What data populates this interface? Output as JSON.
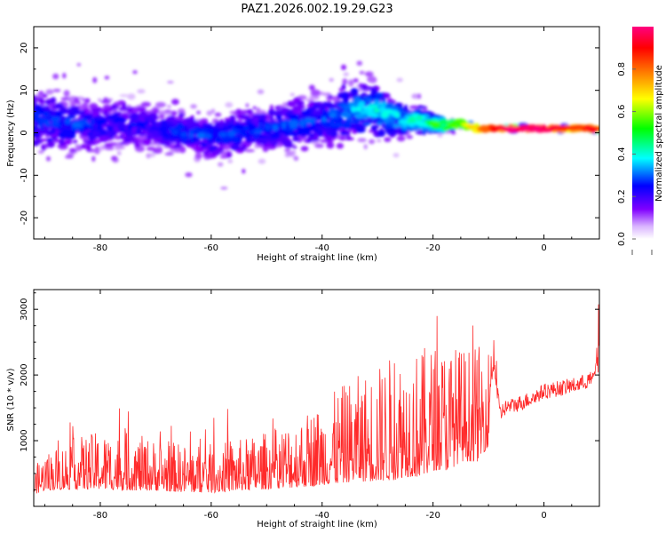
{
  "figure": {
    "title": "PAZ1.2026.002.19.29.G23",
    "colors": {
      "snr_line": "#ff2a2a",
      "axis": "#000000",
      "background": "#ffffff"
    }
  },
  "colorbar": {
    "label": "Normalized spectral amplitude",
    "range": [
      0,
      1
    ],
    "ticks": [
      "0.0",
      "0.2",
      "0.4",
      "0.6",
      "0.8"
    ],
    "tick_values": [
      0.0,
      0.2,
      0.4,
      0.6,
      0.8
    ],
    "colormap": [
      "#ffffff",
      "#8000ff",
      "#0000ff",
      "#00ffff",
      "#00ff00",
      "#ffff00",
      "#ff8000",
      "#ff0000",
      "#ff0080"
    ]
  },
  "chart_data": [
    {
      "type": "heatmap",
      "title": "PAZ1.2026.002.19.29.G23",
      "xlabel": "Height of straight line (km)",
      "ylabel": "Frequency (Hz)",
      "xlim": [
        -92,
        10
      ],
      "ylim": [
        -25,
        25
      ],
      "xticks": [
        -80,
        -60,
        -40,
        -20,
        0
      ],
      "yticks": [
        -20,
        -10,
        0,
        10,
        20
      ],
      "xtick_labels": [
        "-80",
        "-60",
        "-40",
        "-20",
        "0"
      ],
      "ytick_labels": [
        "-20",
        "-10",
        "0",
        "10",
        "20"
      ],
      "ridge": {
        "x": [
          -92,
          -85,
          -80,
          -75,
          -70,
          -65,
          -60,
          -55,
          -50,
          -45,
          -40,
          -35,
          -32,
          -28,
          -25,
          -22,
          -20,
          -17,
          -15,
          -12,
          -10,
          -5,
          0,
          5,
          10
        ],
        "center_freq": [
          3,
          2,
          2,
          2,
          1,
          0,
          -1,
          0,
          1,
          2,
          3,
          5,
          6,
          4,
          3,
          3,
          2,
          2,
          2,
          1,
          1,
          1,
          1,
          1,
          1
        ],
        "spread_hz": [
          10,
          9,
          8,
          8,
          7,
          7,
          7,
          7,
          7,
          8,
          8,
          9,
          9,
          7,
          5,
          4,
          3,
          2,
          1.5,
          1.2,
          1,
          1,
          1,
          1,
          1
        ],
        "amplitude": [
          0.25,
          0.25,
          0.22,
          0.22,
          0.2,
          0.25,
          0.25,
          0.25,
          0.25,
          0.25,
          0.25,
          0.3,
          0.35,
          0.35,
          0.35,
          0.4,
          0.45,
          0.5,
          0.55,
          0.7,
          0.8,
          0.95,
          0.9,
          0.8,
          0.85
        ]
      }
    },
    {
      "type": "line",
      "xlabel": "Height of straight line (km)",
      "ylabel": "SNR (10 * v/v)",
      "xlim": [
        -92,
        10
      ],
      "ylim": [
        0,
        3300
      ],
      "xticks": [
        -80,
        -60,
        -40,
        -20,
        0
      ],
      "yticks": [
        1000,
        2000,
        3000
      ],
      "xtick_labels": [
        "-80",
        "-60",
        "-40",
        "-20",
        "0"
      ],
      "ytick_labels": [
        "1000",
        "2000",
        "3000"
      ],
      "series": [
        {
          "name": "SNR",
          "x": [
            -92,
            -90,
            -85,
            -80,
            -75,
            -70,
            -65,
            -60,
            -55,
            -50,
            -45,
            -40,
            -35,
            -30,
            -27,
            -25,
            -22,
            -20,
            -17,
            -15,
            -12,
            -10,
            -9.5,
            -9,
            -8,
            -7,
            -5,
            -2,
            0,
            3,
            6,
            9,
            10
          ],
          "base": [
            250,
            350,
            400,
            420,
            400,
            380,
            350,
            340,
            380,
            420,
            480,
            550,
            650,
            700,
            750,
            800,
            800,
            900,
            900,
            1000,
            1000,
            1200,
            2000,
            2200,
            1400,
            1500,
            1550,
            1650,
            1750,
            1800,
            1850,
            1950,
            2500
          ],
          "noise": [
            200,
            300,
            400,
            450,
            450,
            400,
            380,
            380,
            400,
            450,
            550,
            650,
            800,
            900,
            1000,
            1000,
            1000,
            1000,
            1000,
            900,
            900,
            800,
            400,
            350,
            200,
            150,
            150,
            150,
            150,
            150,
            150,
            150,
            300
          ]
        }
      ]
    }
  ]
}
